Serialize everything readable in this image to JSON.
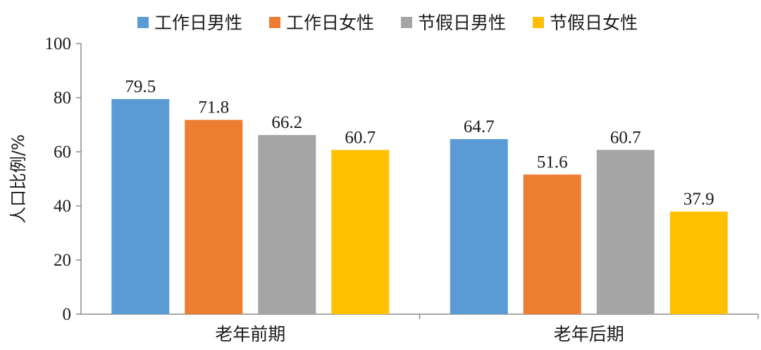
{
  "chart_data": {
    "type": "bar",
    "categories": [
      "老年前期",
      "老年后期"
    ],
    "series": [
      {
        "name": "工作日男性",
        "values": [
          79.5,
          64.7
        ],
        "color": "#5B9BD5"
      },
      {
        "name": "工作日女性",
        "values": [
          71.8,
          51.6
        ],
        "color": "#ED7D31"
      },
      {
        "name": "节假日男性",
        "values": [
          66.2,
          60.7
        ],
        "color": "#A5A5A5"
      },
      {
        "name": "节假日女性",
        "values": [
          60.7,
          37.9
        ],
        "color": "#FFC000"
      }
    ],
    "ylabel": "人口比例/%",
    "xlabel": "",
    "ylim": [
      0,
      100
    ],
    "yticks": [
      0,
      20,
      40,
      60,
      80,
      100
    ],
    "legend_position": "top",
    "grid": false,
    "data_labels": [
      [
        "79.5",
        "64.7"
      ],
      [
        "71.8",
        "51.6"
      ],
      [
        "66.2",
        "60.7"
      ],
      [
        "60.7",
        "37.9"
      ]
    ]
  }
}
